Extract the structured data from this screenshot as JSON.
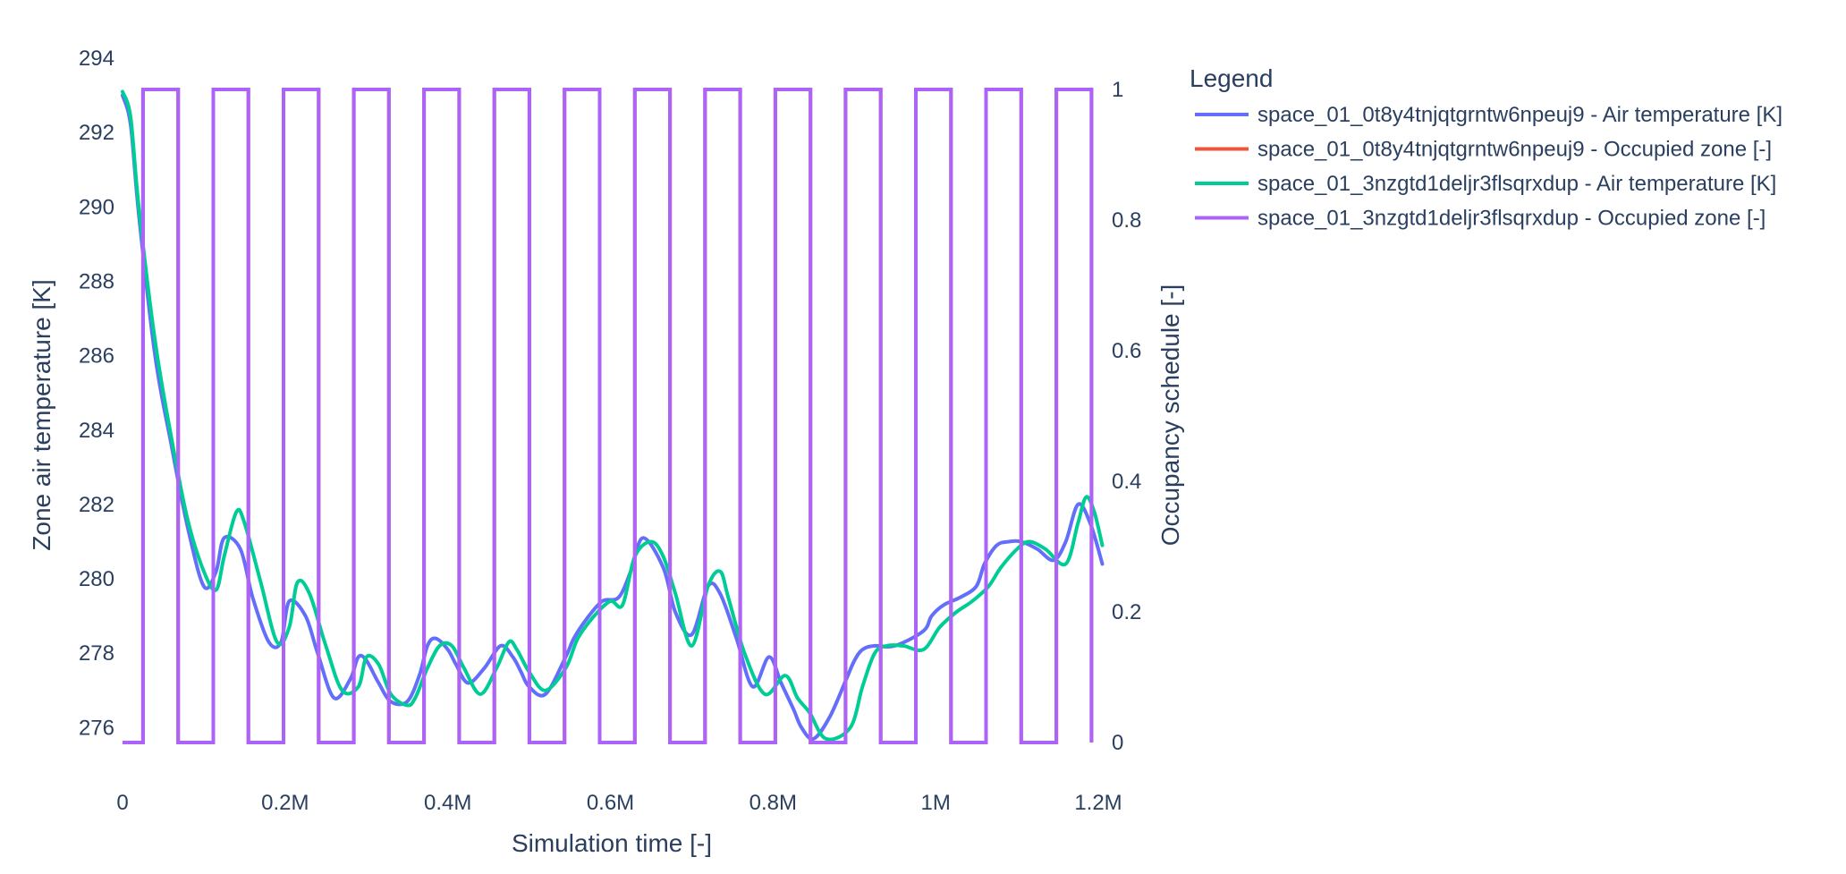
{
  "chart_data": {
    "type": "line",
    "title": "",
    "xlabel": "Simulation time [-]",
    "ylabel": "Zone air temperature [K]",
    "y2label": "Occupancy schedule [-]",
    "xlim": [
      0,
      1200000
    ],
    "ylim": [
      275.6,
      294
    ],
    "y2lim": [
      0,
      1
    ],
    "x_ticks": [
      {
        "value": 0,
        "label": "0"
      },
      {
        "value": 200000,
        "label": "0.2M"
      },
      {
        "value": 400000,
        "label": "0.4M"
      },
      {
        "value": 600000,
        "label": "0.6M"
      },
      {
        "value": 800000,
        "label": "0.8M"
      },
      {
        "value": 1000000,
        "label": "1M"
      },
      {
        "value": 1200000,
        "label": "1.2M"
      }
    ],
    "y_ticks": [
      {
        "value": 276,
        "label": "276"
      },
      {
        "value": 278,
        "label": "278"
      },
      {
        "value": 280,
        "label": "280"
      },
      {
        "value": 282,
        "label": "282"
      },
      {
        "value": 284,
        "label": "284"
      },
      {
        "value": 286,
        "label": "286"
      },
      {
        "value": 288,
        "label": "288"
      },
      {
        "value": 290,
        "label": "290"
      },
      {
        "value": 292,
        "label": "292"
      },
      {
        "value": 294,
        "label": "294"
      }
    ],
    "y2_ticks": [
      {
        "value": 0,
        "label": "0"
      },
      {
        "value": 0.2,
        "label": "0.2"
      },
      {
        "value": 0.4,
        "label": "0.4"
      },
      {
        "value": 0.6,
        "label": "0.6"
      },
      {
        "value": 0.8,
        "label": "0.8"
      },
      {
        "value": 1,
        "label": "1"
      }
    ],
    "grid": false,
    "legend_title": "Legend",
    "legend_placement": "top-right",
    "occupancy_period": 86400,
    "occupancy_on_start": 25200,
    "occupancy_on_end": 68400,
    "series": [
      {
        "name": "space_01_0t8y4tnjqtgrntw6npeuj9 - Air temperature [K]",
        "axis": "y",
        "color": "#636efa",
        "x": [
          0,
          10000,
          20000,
          40000,
          60000,
          80000,
          100000,
          115000,
          125000,
          145000,
          160000,
          180000,
          195000,
          205000,
          225000,
          240000,
          260000,
          280000,
          290000,
          300000,
          315000,
          330000,
          350000,
          365000,
          375000,
          385000,
          400000,
          410000,
          425000,
          445000,
          465000,
          480000,
          490000,
          500000,
          520000,
          545000,
          555000,
          570000,
          590000,
          610000,
          625000,
          640000,
          665000,
          680000,
          700000,
          720000,
          735000,
          755000,
          775000,
          795000,
          810000,
          825000,
          835000,
          850000,
          870000,
          890000,
          900000,
          910000,
          925000,
          950000,
          985000,
          995000,
          1010000,
          1030000,
          1050000,
          1060000,
          1075000,
          1090000,
          1105000,
          1125000,
          1145000,
          1160000,
          1175000,
          1190000,
          1205000
        ],
        "values": [
          293.0,
          292.2,
          289.8,
          286.0,
          283.6,
          281.4,
          279.8,
          280.2,
          281.1,
          280.8,
          279.5,
          278.3,
          278.3,
          279.4,
          279.0,
          278.0,
          276.8,
          277.3,
          277.9,
          277.8,
          277.2,
          276.7,
          276.7,
          277.4,
          278.2,
          278.4,
          278.1,
          277.7,
          277.2,
          277.6,
          278.2,
          277.9,
          277.5,
          277.1,
          276.9,
          277.9,
          278.4,
          278.9,
          279.4,
          279.5,
          280.2,
          281.1,
          280.3,
          279.1,
          278.5,
          279.8,
          279.6,
          278.4,
          277.1,
          277.9,
          277.2,
          276.5,
          276.0,
          275.7,
          276.3,
          277.3,
          277.8,
          278.1,
          278.2,
          278.2,
          278.6,
          279.0,
          279.3,
          279.5,
          279.8,
          280.4,
          280.9,
          281.0,
          281.0,
          280.8,
          280.5,
          281.0,
          282.0,
          281.5,
          280.4
        ]
      },
      {
        "name": "space_01_0t8y4tnjqtgrntw6npeuj9 - Occupied zone [-]",
        "axis": "y2",
        "color": "#ef553b",
        "hidden_behind": true
      },
      {
        "name": "space_01_3nzgtd1deljr3flsqrxdup - Air temperature [K]",
        "axis": "y",
        "color": "#00cc96",
        "x": [
          0,
          10000,
          20000,
          40000,
          60000,
          80000,
          100000,
          115000,
          125000,
          140000,
          150000,
          170000,
          190000,
          205000,
          215000,
          230000,
          250000,
          270000,
          290000,
          300000,
          315000,
          330000,
          350000,
          360000,
          375000,
          390000,
          405000,
          420000,
          440000,
          460000,
          475000,
          485000,
          500000,
          520000,
          545000,
          560000,
          580000,
          600000,
          615000,
          630000,
          650000,
          665000,
          680000,
          700000,
          720000,
          735000,
          745000,
          765000,
          790000,
          815000,
          830000,
          845000,
          865000,
          895000,
          910000,
          925000,
          940000,
          960000,
          985000,
          1005000,
          1025000,
          1045000,
          1065000,
          1080000,
          1100000,
          1115000,
          1135000,
          1160000,
          1175000,
          1185000,
          1195000,
          1205000
        ],
        "values": [
          293.1,
          292.4,
          290.0,
          286.4,
          283.8,
          281.6,
          280.2,
          279.7,
          280.6,
          281.8,
          281.5,
          279.9,
          278.3,
          278.7,
          279.9,
          279.6,
          278.2,
          277.0,
          277.1,
          277.9,
          277.7,
          276.9,
          276.6,
          276.8,
          277.6,
          278.2,
          278.2,
          277.6,
          276.9,
          277.6,
          278.3,
          278.1,
          277.5,
          277.0,
          277.6,
          278.4,
          279.0,
          279.4,
          279.3,
          280.6,
          281.0,
          280.6,
          279.6,
          278.2,
          279.8,
          280.2,
          279.5,
          278.0,
          276.9,
          277.4,
          276.8,
          276.4,
          275.7,
          276.0,
          277.1,
          278.0,
          278.2,
          278.2,
          278.1,
          278.7,
          279.1,
          279.4,
          279.8,
          280.3,
          280.8,
          281.0,
          280.8,
          280.4,
          281.5,
          282.2,
          281.8,
          280.9
        ]
      },
      {
        "name": "space_01_3nzgtd1deljr3flsqrxdup - Occupied zone [-]",
        "axis": "y2",
        "color": "#ab63fa"
      }
    ]
  }
}
